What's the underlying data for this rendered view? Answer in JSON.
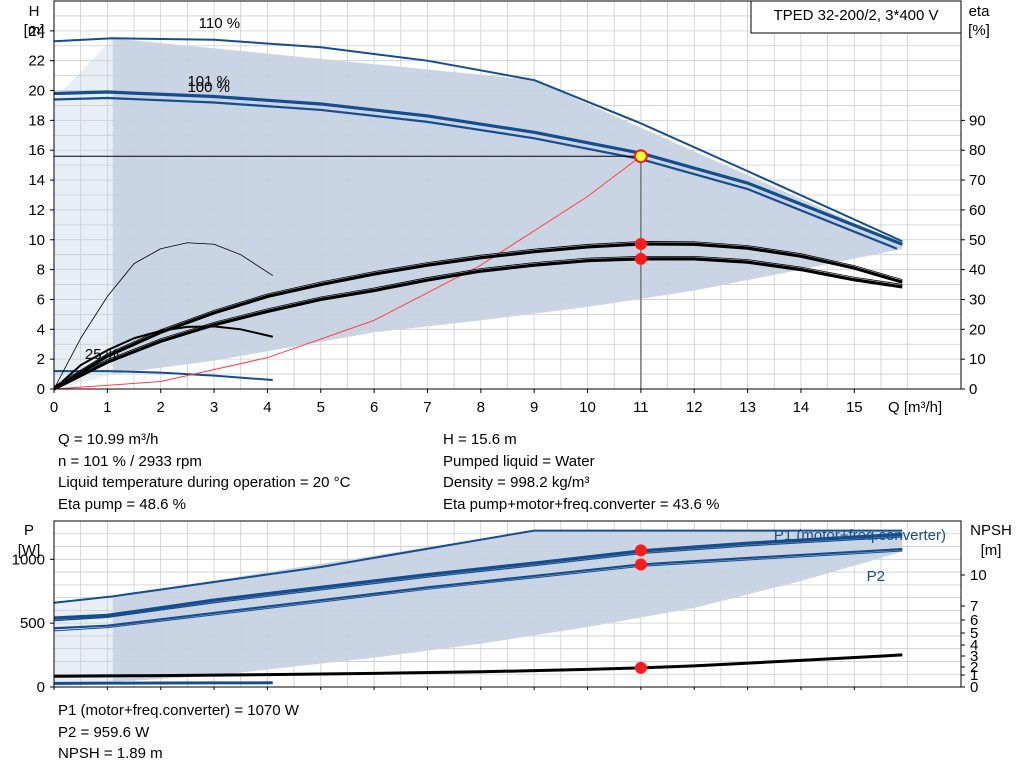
{
  "chart_data": [
    {
      "type": "line",
      "name": "head-efficiency",
      "title": "TPED 32-200/2, 3*400 V",
      "left_axis": {
        "label_line1": "H",
        "label_line2": "[m]",
        "range": [
          0,
          26
        ],
        "ticks": [
          0,
          2,
          4,
          6,
          8,
          10,
          12,
          14,
          16,
          18,
          20,
          22,
          24
        ]
      },
      "right_axis": {
        "label_line1": "eta",
        "label_line2": "[%]",
        "range": [
          0,
          130
        ],
        "ticks": [
          0,
          10,
          20,
          30,
          40,
          50,
          60,
          70,
          80,
          90
        ]
      },
      "x_axis": {
        "label": "Q [m³/h]",
        "range": [
          0,
          17
        ],
        "ticks": [
          0,
          1,
          2,
          3,
          4,
          5,
          6,
          7,
          8,
          9,
          10,
          11,
          12,
          13,
          14,
          15
        ]
      },
      "grid": true,
      "speed_labels": [
        {
          "text": "110 %",
          "x": 3.1,
          "y": 24.2
        },
        {
          "text": "101 %",
          "x": 2.9,
          "y": 20.3
        },
        {
          "text": "100 %",
          "x": 2.9,
          "y": 19.9
        },
        {
          "text": "25 %",
          "x": 0.9,
          "y": 2.0
        }
      ],
      "envelope": {
        "x": [
          1.1,
          9.0,
          15.9,
          15.9,
          14.0,
          12.0,
          10.0,
          8.0,
          6.0,
          3.0,
          1.1
        ],
        "y": [
          23.5,
          20.7,
          9.7,
          9.4,
          8.0,
          6.6,
          5.5,
          4.6,
          3.8,
          1.9,
          1.0
        ]
      },
      "series": [
        {
          "name": "110 %",
          "axis": "left",
          "x": [
            0,
            1.1,
            3,
            5,
            7,
            9,
            11,
            13,
            15.9
          ],
          "y": [
            23.3,
            23.5,
            23.4,
            22.9,
            22.0,
            20.7,
            17.8,
            14.6,
            9.9
          ]
        },
        {
          "name": "101 %",
          "axis": "left",
          "x": [
            0,
            1,
            3,
            5,
            7,
            9,
            11,
            13,
            15.9
          ],
          "y": [
            19.8,
            19.9,
            19.6,
            19.1,
            18.3,
            17.2,
            15.8,
            13.8,
            9.7
          ]
        },
        {
          "name": "100 %",
          "axis": "left",
          "x": [
            0,
            1,
            3,
            5,
            7,
            9,
            11,
            13,
            15.8
          ],
          "y": [
            19.4,
            19.5,
            19.2,
            18.7,
            17.9,
            16.8,
            15.4,
            13.4,
            9.4
          ]
        },
        {
          "name": "25 %",
          "axis": "left",
          "x": [
            0,
            1,
            2,
            3,
            4.1
          ],
          "y": [
            1.2,
            1.2,
            1.1,
            0.9,
            0.6
          ]
        },
        {
          "name": "system curve",
          "axis": "left",
          "x": [
            0,
            2,
            4,
            6,
            8,
            10,
            11
          ],
          "y": [
            0,
            0.5,
            2.1,
            4.6,
            8.3,
            12.9,
            15.6
          ]
        },
        {
          "name": "eta pump",
          "axis": "right",
          "x": [
            0,
            1,
            2,
            3,
            4,
            5,
            6,
            7,
            8,
            9,
            10,
            11,
            12,
            13,
            14,
            15,
            15.9
          ],
          "y": [
            0,
            11,
            19,
            25.5,
            31,
            35,
            38.5,
            41.5,
            44,
            46,
            47.6,
            48.6,
            48.5,
            47.2,
            44.5,
            40.5,
            35.8
          ]
        },
        {
          "name": "eta pump+motor+freq.converter",
          "axis": "right",
          "x": [
            0,
            1,
            2,
            3,
            4,
            5,
            6,
            7,
            8,
            9,
            10,
            11,
            12,
            13,
            14,
            15,
            15.9
          ],
          "y": [
            0,
            9,
            16,
            21.5,
            26,
            30,
            33,
            36.5,
            39.5,
            41.5,
            43,
            43.6,
            43.6,
            42.5,
            40,
            36.6,
            34.2
          ]
        },
        {
          "name": "eta 25 %",
          "axis": "right",
          "x": [
            0,
            0.5,
            1,
            1.5,
            2,
            2.5,
            3,
            3.5,
            4.1
          ],
          "y": [
            0,
            8,
            13,
            17,
            19.5,
            20.8,
            21,
            20,
            17.5
          ]
        },
        {
          "name": "eta 110 % low-flow",
          "axis": "right",
          "x": [
            0,
            0.5,
            1,
            1.5,
            2,
            2.5,
            3,
            3.5,
            4.1
          ],
          "y": [
            0,
            17,
            31,
            42,
            47,
            49,
            48.5,
            45,
            38
          ]
        }
      ],
      "operating_point": {
        "Q": 11,
        "H": 15.6,
        "eta_pump": 48.6,
        "eta_total": 43.6
      }
    },
    {
      "type": "line",
      "name": "power-npsh",
      "left_axis": {
        "label_line1": "P",
        "label_line2": "[W]",
        "range": [
          0,
          1300
        ],
        "ticks": [
          0,
          500,
          1000
        ]
      },
      "right_axis": {
        "label_line1": "NPSH",
        "label_line2": "[m]",
        "ticks": [
          0,
          1,
          2,
          3,
          4,
          5,
          6,
          7,
          10
        ]
      },
      "x_axis": {
        "range": [
          0,
          17
        ],
        "ticks": [
          0,
          1,
          2,
          3,
          4,
          5,
          6,
          7,
          8,
          9,
          10,
          11,
          12,
          13,
          14,
          15
        ]
      },
      "grid": true,
      "legend": [
        "P1 (motor+freq.converter)",
        "P2"
      ],
      "envelope": {
        "x": [
          1.1,
          9.0,
          15.9,
          15.9,
          14,
          12,
          10,
          8,
          6,
          3,
          1.1
        ],
        "y": [
          710,
          1225,
          1220,
          1060,
          830,
          620,
          470,
          340,
          230,
          90,
          40
        ]
      },
      "series": [
        {
          "name": "P1 110 %",
          "axis": "left",
          "x": [
            0,
            1.1,
            5,
            9,
            15.9
          ],
          "y": [
            660,
            710,
            940,
            1225,
            1225
          ]
        },
        {
          "name": "P1 101 %",
          "axis": "left",
          "x": [
            0,
            1,
            3,
            5,
            7,
            9,
            11,
            13,
            15.9
          ],
          "y": [
            540,
            560,
            680,
            780,
            880,
            970,
            1065,
            1125,
            1195
          ]
        },
        {
          "name": "P1 100 %",
          "axis": "left",
          "x": [
            0,
            1,
            3,
            5,
            7,
            9,
            11,
            13,
            15.9
          ],
          "y": [
            520,
            545,
            660,
            760,
            860,
            950,
            1045,
            1105,
            1175
          ]
        },
        {
          "name": "P2 101 %",
          "axis": "left",
          "x": [
            0,
            1,
            3,
            5,
            7,
            9,
            11,
            13,
            15.9
          ],
          "y": [
            460,
            480,
            580,
            680,
            780,
            870,
            960,
            1010,
            1080
          ]
        },
        {
          "name": "P2 100 %",
          "axis": "left",
          "x": [
            0,
            1,
            3,
            5,
            7,
            9,
            11,
            13,
            15.9
          ],
          "y": [
            440,
            465,
            565,
            665,
            765,
            855,
            945,
            995,
            1065
          ]
        },
        {
          "name": "P 25 %",
          "axis": "left",
          "x": [
            0,
            1,
            2,
            3,
            4.1
          ],
          "y": [
            28,
            30,
            31,
            32,
            33
          ]
        },
        {
          "name": "NPSH",
          "axis": "right",
          "x": [
            0,
            2,
            4,
            6,
            8,
            10,
            11,
            12,
            14,
            15.9
          ],
          "y": [
            0.9,
            0.95,
            1.05,
            1.2,
            1.4,
            1.7,
            1.89,
            2.1,
            2.6,
            3.1
          ]
        }
      ],
      "operating_point": {
        "Q": 11,
        "P1": 1070,
        "P2": 959.6,
        "NPSH": 1.89
      }
    }
  ],
  "info_top_left": [
    "Q = 10.99 m³/h",
    "n = 101 % / 2933 rpm",
    "Liquid temperature during operation = 20 °C",
    "Eta pump = 48.6 %"
  ],
  "info_top_right": [
    "H = 15.6 m",
    "Pumped liquid = Water",
    "Density = 998.2 kg/m³",
    "Eta pump+motor+freq.converter = 43.6 %"
  ],
  "info_bottom": [
    "P1 (motor+freq.converter) = 1070 W",
    "P2 = 959.6 W",
    "NPSH = 1.89 m"
  ],
  "colors": {
    "pump_curve": "#164d8c",
    "envelope": "#c9d6e5",
    "envelope_light": "#e7eef6",
    "grid": "#cccccc",
    "system_curve": "#ff4040",
    "point": "#ff1a1a",
    "point_highlight": "#ffff33",
    "legend_text": "#164d8c"
  }
}
